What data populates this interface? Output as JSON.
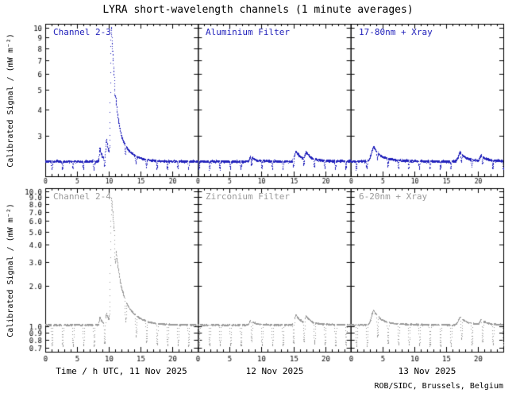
{
  "chart_data": {
    "type": "scatter",
    "title": "LYRA short-wavelength channels (1 minute averages)",
    "source": "ROB/SIDC, Brussels, Belgium",
    "x_axis": {
      "day_labels": [
        "Time / h UTC, 11 Nov 2025",
        "12 Nov 2025",
        "13 Nov 2025"
      ],
      "major_ticks": [
        0,
        5,
        10,
        15,
        20
      ],
      "minor_tick_every_h": 1,
      "hours_per_panel": 24
    },
    "rows": [
      {
        "name": "Channel 2-3",
        "ylabel": "Calibrated Signal / (mW m⁻²)",
        "yscale": "log",
        "ylim": [
          1.9,
          10.5
        ],
        "yticks": [
          3,
          4,
          5,
          6,
          7,
          8,
          9,
          10
        ],
        "ytick_format": "int",
        "color": "#2222bb",
        "panel_labels": [
          "Channel 2-3",
          "Aluminium Filter",
          "17-80nm + Xray"
        ],
        "baseline": 2.25,
        "noise": 0.012,
        "occultation": {
          "period_h": 1.65,
          "width_h": 0.22,
          "min_factor": 0.92,
          "phase_h": 0.9
        },
        "flares": [
          {
            "day": 0,
            "peak_h": 8.55,
            "peak_value": 2.6,
            "rise_h": 0.2,
            "decay_h": 0.3
          },
          {
            "day": 0,
            "peak_h": 9.6,
            "peak_value": 2.85,
            "rise_h": 0.25,
            "decay_h": 0.3
          },
          {
            "day": 0,
            "peak_h": 10.35,
            "peak_value": 10.0,
            "rise_h": 0.22,
            "decay_h": 0.45
          },
          {
            "day": 1,
            "peak_h": 8.3,
            "peak_value": 2.38,
            "rise_h": 0.4,
            "decay_h": 0.5
          },
          {
            "day": 1,
            "peak_h": 15.4,
            "peak_value": 2.52,
            "rise_h": 0.5,
            "decay_h": 0.7
          },
          {
            "day": 1,
            "peak_h": 17.0,
            "peak_value": 2.45,
            "rise_h": 0.4,
            "decay_h": 0.6
          },
          {
            "day": 2,
            "peak_h": 3.6,
            "peak_value": 2.65,
            "rise_h": 0.7,
            "decay_h": 0.9
          },
          {
            "day": 2,
            "peak_h": 17.2,
            "peak_value": 2.48,
            "rise_h": 0.6,
            "decay_h": 0.8
          },
          {
            "day": 2,
            "peak_h": 20.5,
            "peak_value": 2.4,
            "rise_h": 0.4,
            "decay_h": 0.6
          }
        ]
      },
      {
        "name": "Channel 2-4",
        "ylabel": "Calibrated Signal / (mW m⁻²)",
        "yscale": "log",
        "ylim": [
          0.65,
          10.5
        ],
        "yticks": [
          10.0,
          9.0,
          8.0,
          7.0,
          6.0,
          5.0,
          4.0,
          3.0,
          2.0,
          1.0,
          0.9,
          0.8,
          0.7
        ],
        "ytick_format": "1dp",
        "color": "#9a9a9a",
        "panel_labels": [
          "Channel 2-4",
          "Zirconium Filter",
          "6-20nm + Xray"
        ],
        "baseline": 1.03,
        "noise": 0.011,
        "occultation": {
          "period_h": 1.65,
          "width_h": 0.3,
          "min_factor": 0.7,
          "phase_h": 0.9
        },
        "flares": [
          {
            "day": 0,
            "peak_h": 8.55,
            "peak_value": 1.18,
            "rise_h": 0.2,
            "decay_h": 0.3
          },
          {
            "day": 0,
            "peak_h": 9.6,
            "peak_value": 1.25,
            "rise_h": 0.25,
            "decay_h": 0.3
          },
          {
            "day": 0,
            "peak_h": 10.4,
            "peak_value": 8.8,
            "rise_h": 0.25,
            "decay_h": 0.5
          },
          {
            "day": 1,
            "peak_h": 8.3,
            "peak_value": 1.12,
            "rise_h": 0.4,
            "decay_h": 0.5
          },
          {
            "day": 1,
            "peak_h": 15.4,
            "peak_value": 1.22,
            "rise_h": 0.5,
            "decay_h": 0.7
          },
          {
            "day": 1,
            "peak_h": 17.0,
            "peak_value": 1.16,
            "rise_h": 0.4,
            "decay_h": 0.6
          },
          {
            "day": 2,
            "peak_h": 3.6,
            "peak_value": 1.32,
            "rise_h": 0.7,
            "decay_h": 0.9
          },
          {
            "day": 2,
            "peak_h": 17.2,
            "peak_value": 1.18,
            "rise_h": 0.6,
            "decay_h": 0.8
          },
          {
            "day": 2,
            "peak_h": 20.5,
            "peak_value": 1.12,
            "rise_h": 0.4,
            "decay_h": 0.6
          }
        ]
      }
    ]
  }
}
